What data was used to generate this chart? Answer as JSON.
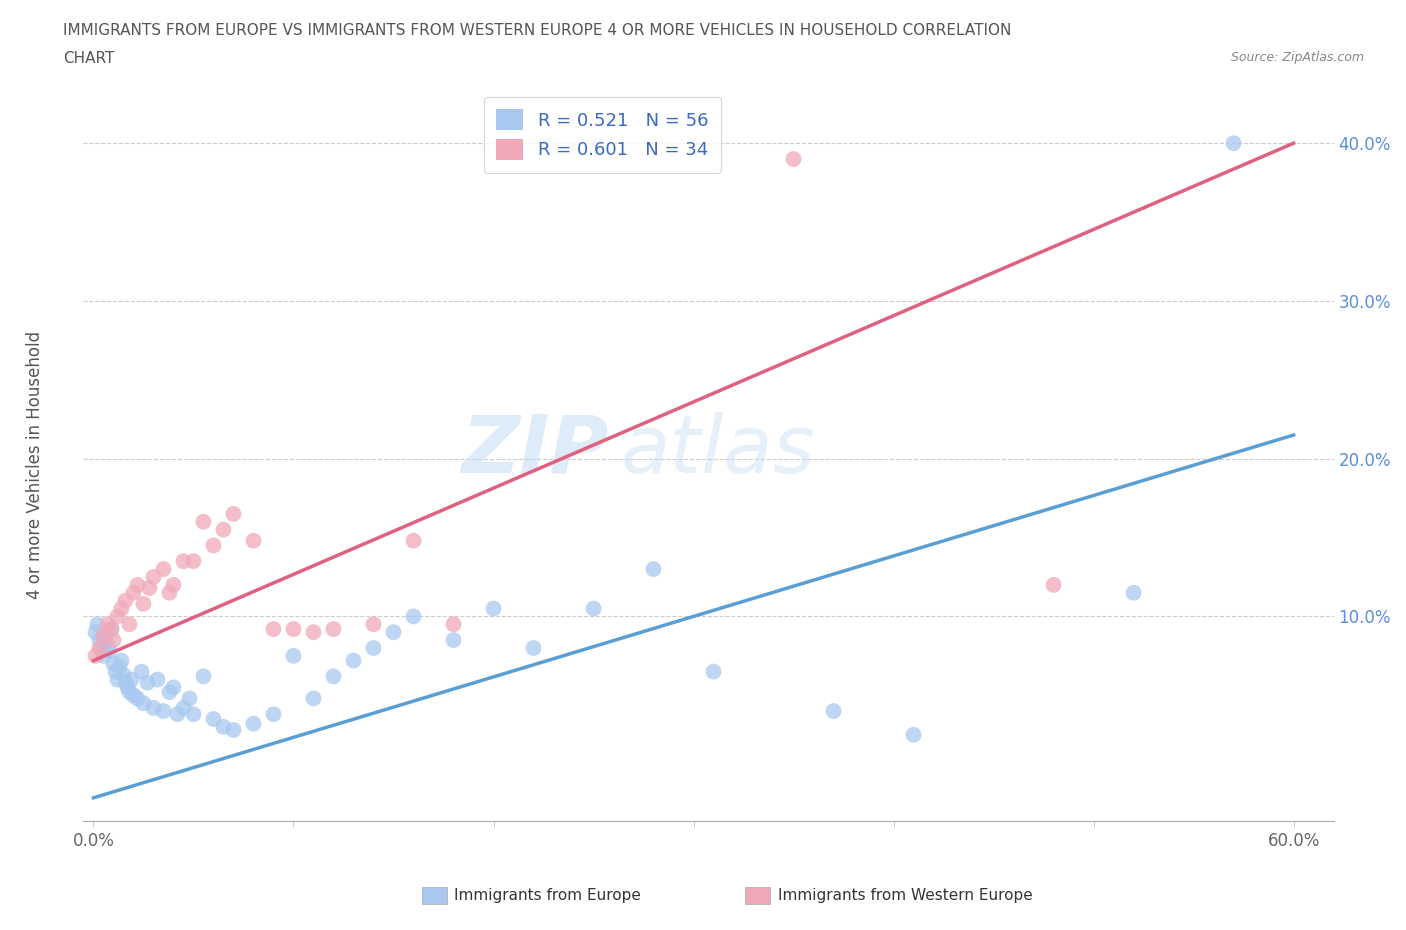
{
  "title_line1": "IMMIGRANTS FROM EUROPE VS IMMIGRANTS FROM WESTERN EUROPE 4 OR MORE VEHICLES IN HOUSEHOLD CORRELATION",
  "title_line2": "CHART",
  "source_text": "Source: ZipAtlas.com",
  "ylabel": "4 or more Vehicles in Household",
  "legend_label_1": "Immigrants from Europe",
  "legend_label_2": "Immigrants from Western Europe",
  "R1": 0.521,
  "N1": 56,
  "R2": 0.601,
  "N2": 34,
  "color_blue": "#a8c8f0",
  "color_pink": "#f0a8b8",
  "line_color_blue": "#5a9fd4",
  "line_color_pink": "#e06080",
  "watermark_zip": "ZIP",
  "watermark_atlas": "atlas",
  "xlim": [
    0.0,
    0.6
  ],
  "ylim": [
    -0.03,
    0.44
  ],
  "xtick_left": "0.0%",
  "xtick_right": "60.0%",
  "yticks": [
    0.1,
    0.2,
    0.3,
    0.4
  ],
  "ytick_labels": [
    "10.0%",
    "20.0%",
    "30.0%",
    "40.0%"
  ],
  "blue_x": [
    0.001,
    0.002,
    0.003,
    0.004,
    0.005,
    0.006,
    0.007,
    0.008,
    0.009,
    0.01,
    0.011,
    0.012,
    0.013,
    0.014,
    0.015,
    0.016,
    0.017,
    0.018,
    0.019,
    0.02,
    0.022,
    0.024,
    0.025,
    0.027,
    0.03,
    0.032,
    0.035,
    0.038,
    0.04,
    0.042,
    0.045,
    0.048,
    0.05,
    0.055,
    0.06,
    0.065,
    0.07,
    0.08,
    0.09,
    0.1,
    0.11,
    0.12,
    0.13,
    0.14,
    0.15,
    0.16,
    0.18,
    0.2,
    0.22,
    0.25,
    0.28,
    0.31,
    0.37,
    0.41,
    0.52,
    0.57
  ],
  "blue_y": [
    0.09,
    0.095,
    0.085,
    0.08,
    0.075,
    0.088,
    0.082,
    0.078,
    0.092,
    0.07,
    0.065,
    0.06,
    0.068,
    0.072,
    0.063,
    0.058,
    0.055,
    0.052,
    0.06,
    0.05,
    0.048,
    0.065,
    0.045,
    0.058,
    0.042,
    0.06,
    0.04,
    0.052,
    0.055,
    0.038,
    0.042,
    0.048,
    0.038,
    0.062,
    0.035,
    0.03,
    0.028,
    0.032,
    0.038,
    0.075,
    0.048,
    0.062,
    0.072,
    0.08,
    0.09,
    0.1,
    0.085,
    0.105,
    0.08,
    0.105,
    0.13,
    0.065,
    0.04,
    0.025,
    0.115,
    0.4
  ],
  "pink_x": [
    0.001,
    0.003,
    0.005,
    0.007,
    0.009,
    0.01,
    0.012,
    0.014,
    0.016,
    0.018,
    0.02,
    0.022,
    0.025,
    0.028,
    0.03,
    0.035,
    0.038,
    0.04,
    0.045,
    0.05,
    0.055,
    0.06,
    0.065,
    0.07,
    0.08,
    0.09,
    0.1,
    0.11,
    0.12,
    0.14,
    0.16,
    0.18,
    0.35,
    0.48
  ],
  "pink_y": [
    0.075,
    0.08,
    0.088,
    0.095,
    0.092,
    0.085,
    0.1,
    0.105,
    0.11,
    0.095,
    0.115,
    0.12,
    0.108,
    0.118,
    0.125,
    0.13,
    0.115,
    0.12,
    0.135,
    0.135,
    0.16,
    0.145,
    0.155,
    0.165,
    0.148,
    0.092,
    0.092,
    0.09,
    0.092,
    0.095,
    0.148,
    0.095,
    0.39,
    0.12
  ],
  "blue_line_x0": 0.0,
  "blue_line_y0": -0.015,
  "blue_line_x1": 0.6,
  "blue_line_y1": 0.215,
  "pink_line_x0": 0.0,
  "pink_line_y0": 0.072,
  "pink_line_x1": 0.6,
  "pink_line_y1": 0.4
}
